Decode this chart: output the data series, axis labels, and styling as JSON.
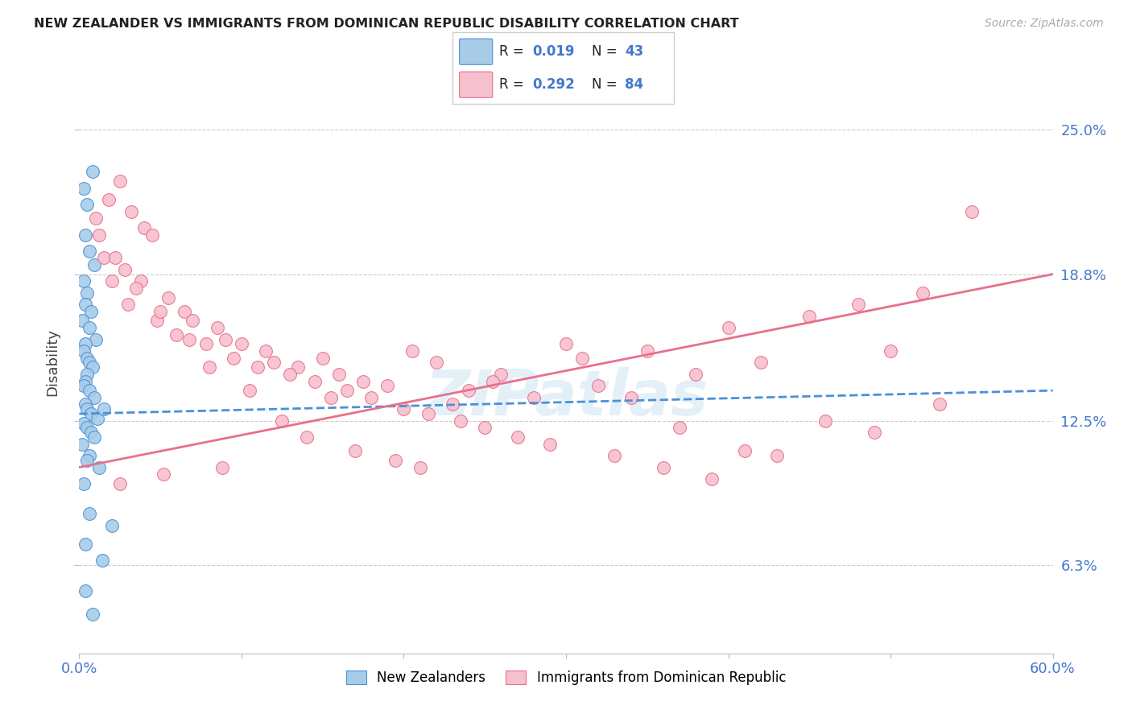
{
  "title": "NEW ZEALANDER VS IMMIGRANTS FROM DOMINICAN REPUBLIC DISABILITY CORRELATION CHART",
  "source": "Source: ZipAtlas.com",
  "ylabel": "Disability",
  "ytick_labels": [
    "6.3%",
    "12.5%",
    "18.8%",
    "25.0%"
  ],
  "ytick_values": [
    6.3,
    12.5,
    18.8,
    25.0
  ],
  "xmin": 0.0,
  "xmax": 60.0,
  "ymin": 2.5,
  "ymax": 27.5,
  "watermark": "ZIPatlas",
  "blue_color": "#a8cce8",
  "pink_color": "#f7c0ce",
  "blue_line_color": "#4a90d9",
  "pink_line_color": "#e8708a",
  "grid_color": "#cccccc",
  "title_color": "#222222",
  "axis_label_color": "#4477cc",
  "blue_line_start_y": 12.8,
  "blue_line_end_y": 13.8,
  "pink_line_start_y": 10.5,
  "pink_line_end_y": 18.8,
  "blue_scatter_x": [
    0.3,
    0.5,
    0.8,
    0.4,
    0.6,
    0.9,
    0.3,
    0.5,
    0.4,
    0.7,
    0.2,
    0.6,
    1.0,
    0.4,
    0.3,
    0.5,
    0.6,
    0.8,
    0.5,
    0.4,
    0.3,
    0.6,
    0.9,
    0.4,
    0.5,
    0.7,
    1.1,
    1.5,
    0.3,
    0.5,
    0.7,
    0.9,
    0.2,
    0.6,
    1.2,
    0.3,
    0.6,
    2.0,
    0.4,
    1.4,
    0.4,
    0.8,
    0.5
  ],
  "blue_scatter_y": [
    22.5,
    21.8,
    23.2,
    20.5,
    19.8,
    19.2,
    18.5,
    18.0,
    17.5,
    17.2,
    16.8,
    16.5,
    16.0,
    15.8,
    15.5,
    15.2,
    15.0,
    14.8,
    14.5,
    14.2,
    14.0,
    13.8,
    13.5,
    13.2,
    13.0,
    12.8,
    12.6,
    13.0,
    12.4,
    12.2,
    12.0,
    11.8,
    11.5,
    11.0,
    10.5,
    9.8,
    8.5,
    8.0,
    7.2,
    6.5,
    5.2,
    4.2,
    10.8
  ],
  "pink_scatter_x": [
    1.0,
    1.8,
    2.5,
    3.2,
    4.0,
    1.5,
    2.8,
    4.5,
    3.8,
    5.5,
    6.5,
    7.0,
    8.5,
    9.0,
    10.0,
    11.5,
    12.0,
    13.5,
    15.0,
    16.0,
    17.5,
    19.0,
    20.5,
    22.0,
    24.0,
    26.0,
    28.0,
    30.0,
    32.0,
    35.0,
    38.0,
    40.0,
    42.0,
    45.0,
    48.0,
    50.0,
    52.0,
    55.0,
    2.0,
    3.0,
    4.8,
    6.0,
    7.8,
    9.5,
    11.0,
    13.0,
    14.5,
    16.5,
    18.0,
    20.0,
    21.5,
    23.5,
    25.0,
    27.0,
    29.0,
    33.0,
    36.0,
    39.0,
    43.0,
    49.0,
    1.2,
    2.2,
    3.5,
    5.0,
    6.8,
    8.0,
    10.5,
    12.5,
    14.0,
    17.0,
    19.5,
    21.0,
    23.0,
    25.5,
    31.0,
    34.0,
    37.0,
    41.0,
    46.0,
    53.0,
    2.5,
    5.2,
    8.8,
    15.5
  ],
  "pink_scatter_y": [
    21.2,
    22.0,
    22.8,
    21.5,
    20.8,
    19.5,
    19.0,
    20.5,
    18.5,
    17.8,
    17.2,
    16.8,
    16.5,
    16.0,
    15.8,
    15.5,
    15.0,
    14.8,
    15.2,
    14.5,
    14.2,
    14.0,
    15.5,
    15.0,
    13.8,
    14.5,
    13.5,
    15.8,
    14.0,
    15.5,
    14.5,
    16.5,
    15.0,
    17.0,
    17.5,
    15.5,
    18.0,
    21.5,
    18.5,
    17.5,
    16.8,
    16.2,
    15.8,
    15.2,
    14.8,
    14.5,
    14.2,
    13.8,
    13.5,
    13.0,
    12.8,
    12.5,
    12.2,
    11.8,
    11.5,
    11.0,
    10.5,
    10.0,
    11.0,
    12.0,
    20.5,
    19.5,
    18.2,
    17.2,
    16.0,
    14.8,
    13.8,
    12.5,
    11.8,
    11.2,
    10.8,
    10.5,
    13.2,
    14.2,
    15.2,
    13.5,
    12.2,
    11.2,
    12.5,
    13.2,
    9.8,
    10.2,
    10.5,
    13.5
  ]
}
